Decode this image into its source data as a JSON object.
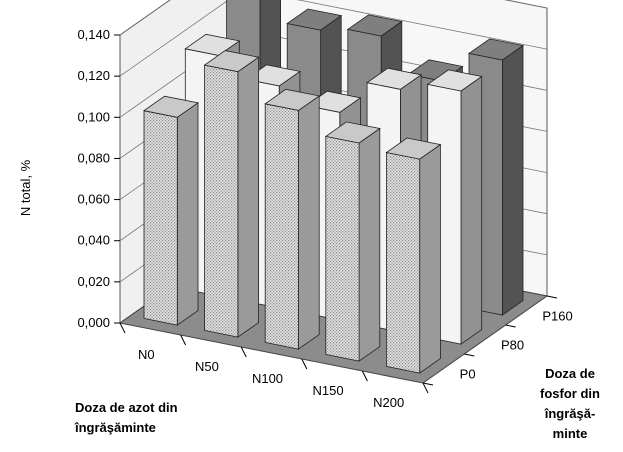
{
  "chart_data": {
    "type": "bar",
    "chart_form": "3d-bar",
    "ylabel": "N total, %",
    "xlabel_lines": [
      "Doza de azot din",
      "îngrăşăminte"
    ],
    "zlabel_lines": [
      "Doza de",
      "fosfor din",
      "îngrăşă-",
      "minte"
    ],
    "y_ticks": [
      "0,000",
      "0,020",
      "0,040",
      "0,060",
      "0,080",
      "0,100",
      "0,120",
      "0,140"
    ],
    "ylim": [
      0,
      0.14
    ],
    "categories": [
      "N0",
      "N50",
      "N100",
      "N150",
      "N200"
    ],
    "depth_categories": [
      "P0",
      "P80",
      "P160"
    ],
    "grid": true,
    "series": [
      {
        "values": [
          0.101,
          0.129,
          0.116,
          0.106,
          0.104
        ],
        "color": "#d4d4d4"
      },
      {
        "values": [
          0.117,
          0.108,
          0.101,
          0.118,
          0.123
        ],
        "color": "#f4f4f4"
      },
      {
        "values": [
          0.133,
          0.121,
          0.124,
          0.108,
          0.124
        ],
        "color": "#8a8a8a"
      }
    ]
  }
}
